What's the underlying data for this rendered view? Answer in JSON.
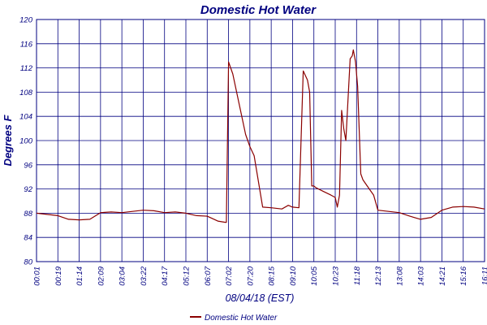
{
  "chart_data": {
    "type": "line",
    "title": "Domestic Hot Water",
    "xlabel": "08/04/18 (EST)",
    "ylabel": "Degrees F",
    "ylim": [
      80,
      120
    ],
    "yticks": [
      80,
      84,
      88,
      92,
      96,
      100,
      104,
      108,
      112,
      116,
      120
    ],
    "ytick_labels": [
      "80",
      "84",
      "88",
      "92",
      "96",
      "100",
      "104",
      "108",
      "112",
      "116",
      "120"
    ],
    "xtick_labels": [
      "00:01",
      "00:19",
      "01:14",
      "02:09",
      "03:04",
      "03:22",
      "04:17",
      "05:12",
      "06:07",
      "07:02",
      "07:20",
      "08:15",
      "09:10",
      "10:05",
      "10:23",
      "11:18",
      "12:13",
      "13:08",
      "14:03",
      "14:21",
      "15:16",
      "16:11"
    ],
    "grid": true,
    "legend_position": "bottom-left",
    "colors": {
      "axis": "#000080",
      "grid": "#000080",
      "series": "#8b0000"
    },
    "series": [
      {
        "name": "Domestic Hot Water",
        "x": [
          0,
          1,
          1.5,
          2,
          2.5,
          3,
          3.5,
          4,
          4.5,
          5,
          5.5,
          6,
          6.5,
          7,
          7.5,
          8,
          8.5,
          8.85,
          8.9,
          9.0,
          9.2,
          9.5,
          9.8,
          10.0,
          10.2,
          10.6,
          11,
          11.5,
          11.8,
          12.0,
          12.3,
          12.5,
          12.7,
          12.8,
          12.9,
          13.0,
          13.1,
          13.5,
          13.8,
          14.0,
          14.1,
          14.2,
          14.3,
          14.4,
          14.5,
          14.7,
          14.8,
          14.85,
          14.95,
          15.05,
          15.2,
          15.3,
          15.5,
          15.8,
          16.0,
          16.5,
          17.0,
          17.5,
          18.0,
          18.5,
          19.0,
          19.5,
          20.0,
          20.5,
          21.0
        ],
        "values": [
          88.0,
          87.6,
          87.0,
          86.9,
          87.0,
          88.1,
          88.2,
          88.1,
          88.3,
          88.5,
          88.4,
          88.1,
          88.2,
          88.0,
          87.6,
          87.5,
          86.7,
          86.5,
          86.5,
          113.0,
          111.0,
          106.0,
          101.0,
          99.0,
          97.5,
          89.0,
          88.9,
          88.7,
          89.3,
          89.0,
          88.9,
          111.5,
          110.0,
          108.0,
          92.5,
          92.5,
          92.2,
          91.5,
          91.0,
          90.6,
          89.0,
          91.0,
          105.0,
          102.0,
          100.0,
          113.5,
          114.0,
          115.0,
          113.0,
          109.0,
          94.5,
          93.5,
          92.5,
          91.0,
          88.5,
          88.3,
          88.1,
          87.5,
          87.0,
          87.3,
          88.5,
          89.0,
          89.1,
          89.0,
          88.7
        ]
      }
    ]
  },
  "legend": {
    "label": "Domestic Hot Water"
  }
}
